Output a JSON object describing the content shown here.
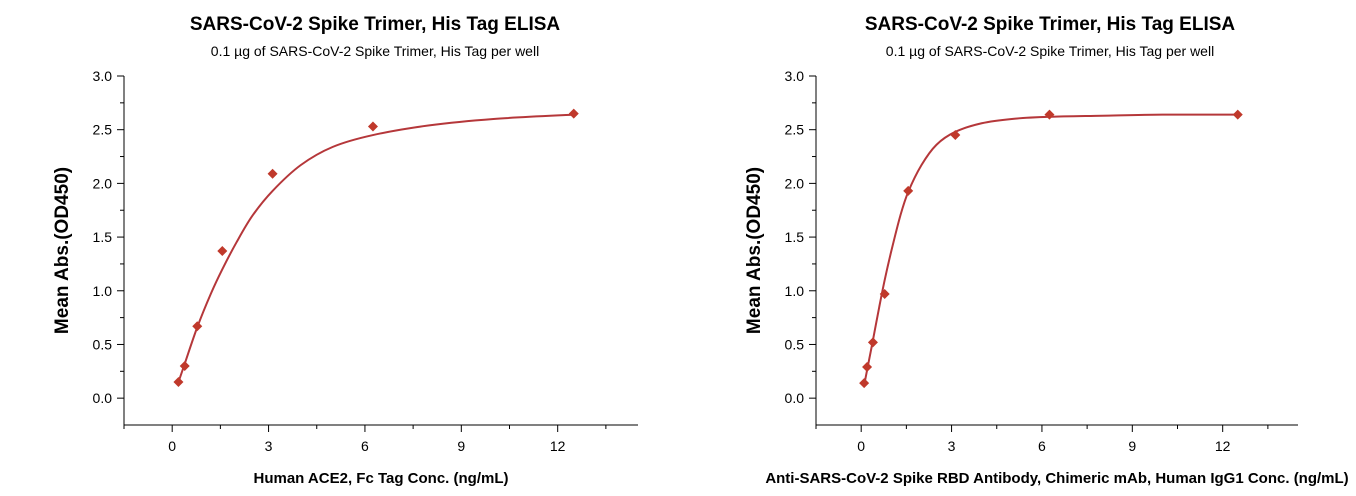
{
  "chart_data": [
    {
      "type": "scatter",
      "title": "SARS-CoV-2 Spike Trimer, His Tag  ELISA",
      "subtitle": "0.1 µg of SARS-CoV-2 Spike Trimer, His Tag  per well",
      "xlabel": "Human ACE2, Fc Tag Conc. (ng/mL)",
      "ylabel": "Mean Abs.(OD450)",
      "xlim": [
        -1.5,
        14.5
      ],
      "ylim": [
        -0.25,
        3.0
      ],
      "xticks": [
        "0",
        "3",
        "6",
        "9",
        "12"
      ],
      "yticks": [
        "0.0",
        "0.5",
        "1.0",
        "1.5",
        "2.0",
        "2.5",
        "3.0"
      ],
      "marker_color": "#c0392b",
      "curve_color": "#b5373a",
      "grid": false,
      "x": [
        0.195,
        0.39,
        0.78,
        1.56,
        3.125,
        6.25,
        12.5
      ],
      "y": [
        0.15,
        0.3,
        0.67,
        1.37,
        2.09,
        2.53,
        2.65
      ],
      "curve_x": [
        0.195,
        0.39,
        0.78,
        1.2,
        1.56,
        2.0,
        2.5,
        3.125,
        4.0,
        5.0,
        6.25,
        8.0,
        10.0,
        12.5
      ],
      "curve_y": [
        0.15,
        0.32,
        0.66,
        0.97,
        1.2,
        1.45,
        1.7,
        1.93,
        2.17,
        2.34,
        2.45,
        2.54,
        2.6,
        2.64
      ]
    },
    {
      "type": "scatter",
      "title": "SARS-CoV-2 Spike Trimer, His Tag  ELISA",
      "subtitle": "0.1 µg of SARS-CoV-2 Spike Trimer, His Tag  per well",
      "xlabel": "Anti-SARS-CoV-2 Spike RBD Antibody, Chimeric mAb, Human IgG1 Conc. (ng/mL)",
      "ylabel": "Mean Abs.(OD450)",
      "xlim": [
        -1.5,
        14.5
      ],
      "ylim": [
        -0.25,
        3.0
      ],
      "xticks": [
        "0",
        "3",
        "6",
        "9",
        "12"
      ],
      "yticks": [
        "0.0",
        "0.5",
        "1.0",
        "1.5",
        "2.0",
        "2.5",
        "3.0"
      ],
      "marker_color": "#c0392b",
      "curve_color": "#b5373a",
      "grid": false,
      "x": [
        0.098,
        0.195,
        0.39,
        0.78,
        1.56,
        3.125,
        6.25,
        12.5
      ],
      "y": [
        0.14,
        0.29,
        0.52,
        0.97,
        1.93,
        2.45,
        2.64,
        2.64
      ],
      "curve_x": [
        0.098,
        0.195,
        0.39,
        0.6,
        0.78,
        1.0,
        1.3,
        1.56,
        2.0,
        2.5,
        3.125,
        4.0,
        5.0,
        6.25,
        8.0,
        10.0,
        12.5
      ],
      "curve_y": [
        0.12,
        0.26,
        0.54,
        0.85,
        1.1,
        1.37,
        1.7,
        1.92,
        2.17,
        2.36,
        2.48,
        2.56,
        2.6,
        2.62,
        2.63,
        2.64,
        2.64
      ]
    }
  ]
}
